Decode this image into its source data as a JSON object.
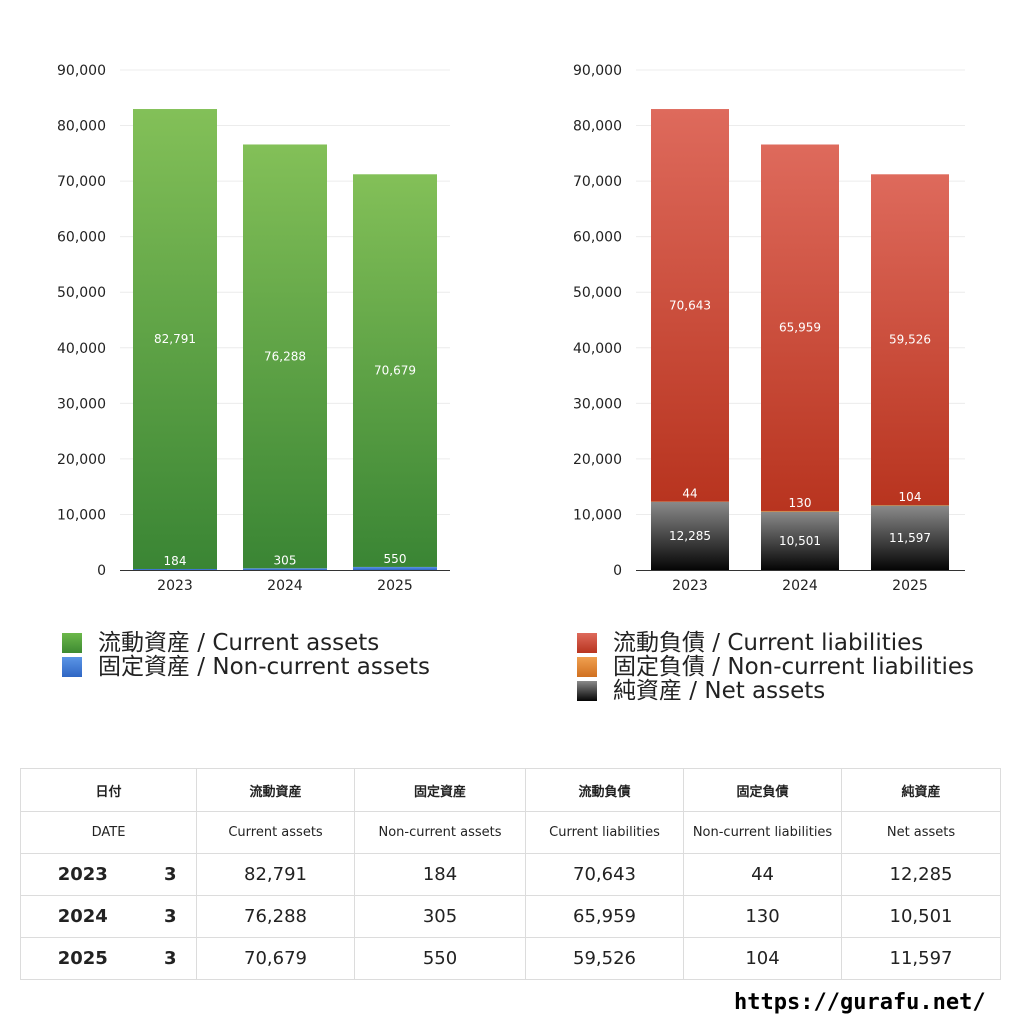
{
  "chart_data": [
    {
      "type": "bar",
      "stacked": true,
      "categories": [
        "2023",
        "2024",
        "2025"
      ],
      "ylim": [
        0,
        90000
      ],
      "yticks": [
        "0",
        "10,000",
        "20,000",
        "30,000",
        "40,000",
        "50,000",
        "60,000",
        "70,000",
        "80,000",
        "90,000"
      ],
      "grid": true,
      "legend_position": "bottom",
      "series": [
        {
          "name": "固定資産 / Non-current assets",
          "values": [
            184,
            305,
            550
          ],
          "labels": [
            "184",
            "305",
            "550"
          ],
          "color": "#3b78d8"
        },
        {
          "name": "流動資産 / Current assets",
          "values": [
            82791,
            76288,
            70679
          ],
          "labels": [
            "82,791",
            "76,288",
            "70,679"
          ],
          "color": "#4e9a3c"
        }
      ]
    },
    {
      "type": "bar",
      "stacked": true,
      "categories": [
        "2023",
        "2024",
        "2025"
      ],
      "ylim": [
        0,
        90000
      ],
      "yticks": [
        "0",
        "10,000",
        "20,000",
        "30,000",
        "40,000",
        "50,000",
        "60,000",
        "70,000",
        "80,000",
        "90,000"
      ],
      "grid": true,
      "legend_position": "bottom",
      "series": [
        {
          "name": "純資産 / Net assets",
          "values": [
            12285,
            10501,
            11597
          ],
          "labels": [
            "12,285",
            "10,501",
            "11,597"
          ],
          "color": "#3a3a3a"
        },
        {
          "name": "固定負債 / Non-current liabilities",
          "values": [
            44,
            130,
            104
          ],
          "labels": [
            "44",
            "130",
            "104"
          ],
          "color": "#e08a3a"
        },
        {
          "name": "流動負債 / Current liabilities",
          "values": [
            70643,
            65959,
            59526
          ],
          "labels": [
            "70,643",
            "65,959",
            "59,526"
          ],
          "color": "#c63c2c"
        }
      ]
    }
  ],
  "legends": {
    "left": [
      {
        "label": "流動資産 / Current assets",
        "color": "#5aa844"
      },
      {
        "label": "固定資産 / Non-current assets",
        "color": "#3b78d8"
      }
    ],
    "right": [
      {
        "label": "流動負債 / Current liabilities",
        "color": "#cc4433"
      },
      {
        "label": "固定負債 / Non-current liabilities",
        "color": "#e08a3a"
      },
      {
        "label": "純資産 / Net assets",
        "color": "#333333"
      }
    ]
  },
  "table": {
    "header_jp": [
      "日付",
      "流動資産",
      "固定資産",
      "流動負債",
      "固定負債",
      "純資産"
    ],
    "header_en": [
      "DATE",
      "Current assets",
      "Non-current assets",
      "Current liabilities",
      "Non-current liabilities",
      "Net assets"
    ],
    "rows": [
      {
        "year": "2023",
        "month": "3",
        "cells": [
          "82,791",
          "184",
          "70,643",
          "44",
          "12,285"
        ]
      },
      {
        "year": "2024",
        "month": "3",
        "cells": [
          "76,288",
          "305",
          "65,959",
          "130",
          "10,501"
        ]
      },
      {
        "year": "2025",
        "month": "3",
        "cells": [
          "70,679",
          "550",
          "59,526",
          "104",
          "11,597"
        ]
      }
    ]
  },
  "footer": {
    "url": "https://gurafu.net/"
  }
}
